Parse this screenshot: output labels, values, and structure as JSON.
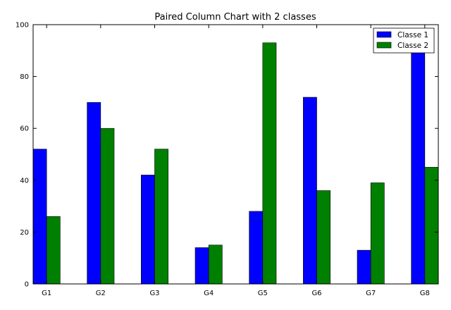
{
  "chart_data": {
    "type": "bar",
    "title": "Paired Column Chart with 2 classes",
    "xlabel": "",
    "ylabel": "",
    "categories": [
      "G1",
      "G2",
      "G3",
      "G4",
      "G5",
      "G6",
      "G7",
      "G8"
    ],
    "series": [
      {
        "name": "Classe 1",
        "color": "#0000ff",
        "values": [
          52,
          70,
          42,
          14,
          28,
          72,
          13,
          92
        ]
      },
      {
        "name": "Classe 2",
        "color": "#008000",
        "values": [
          26,
          60,
          52,
          15,
          93,
          36,
          39,
          45
        ]
      }
    ],
    "ylim": [
      0,
      100
    ],
    "yticks": [
      0,
      20,
      40,
      60,
      80,
      100
    ],
    "grid": false,
    "legend_position": "top-right"
  }
}
